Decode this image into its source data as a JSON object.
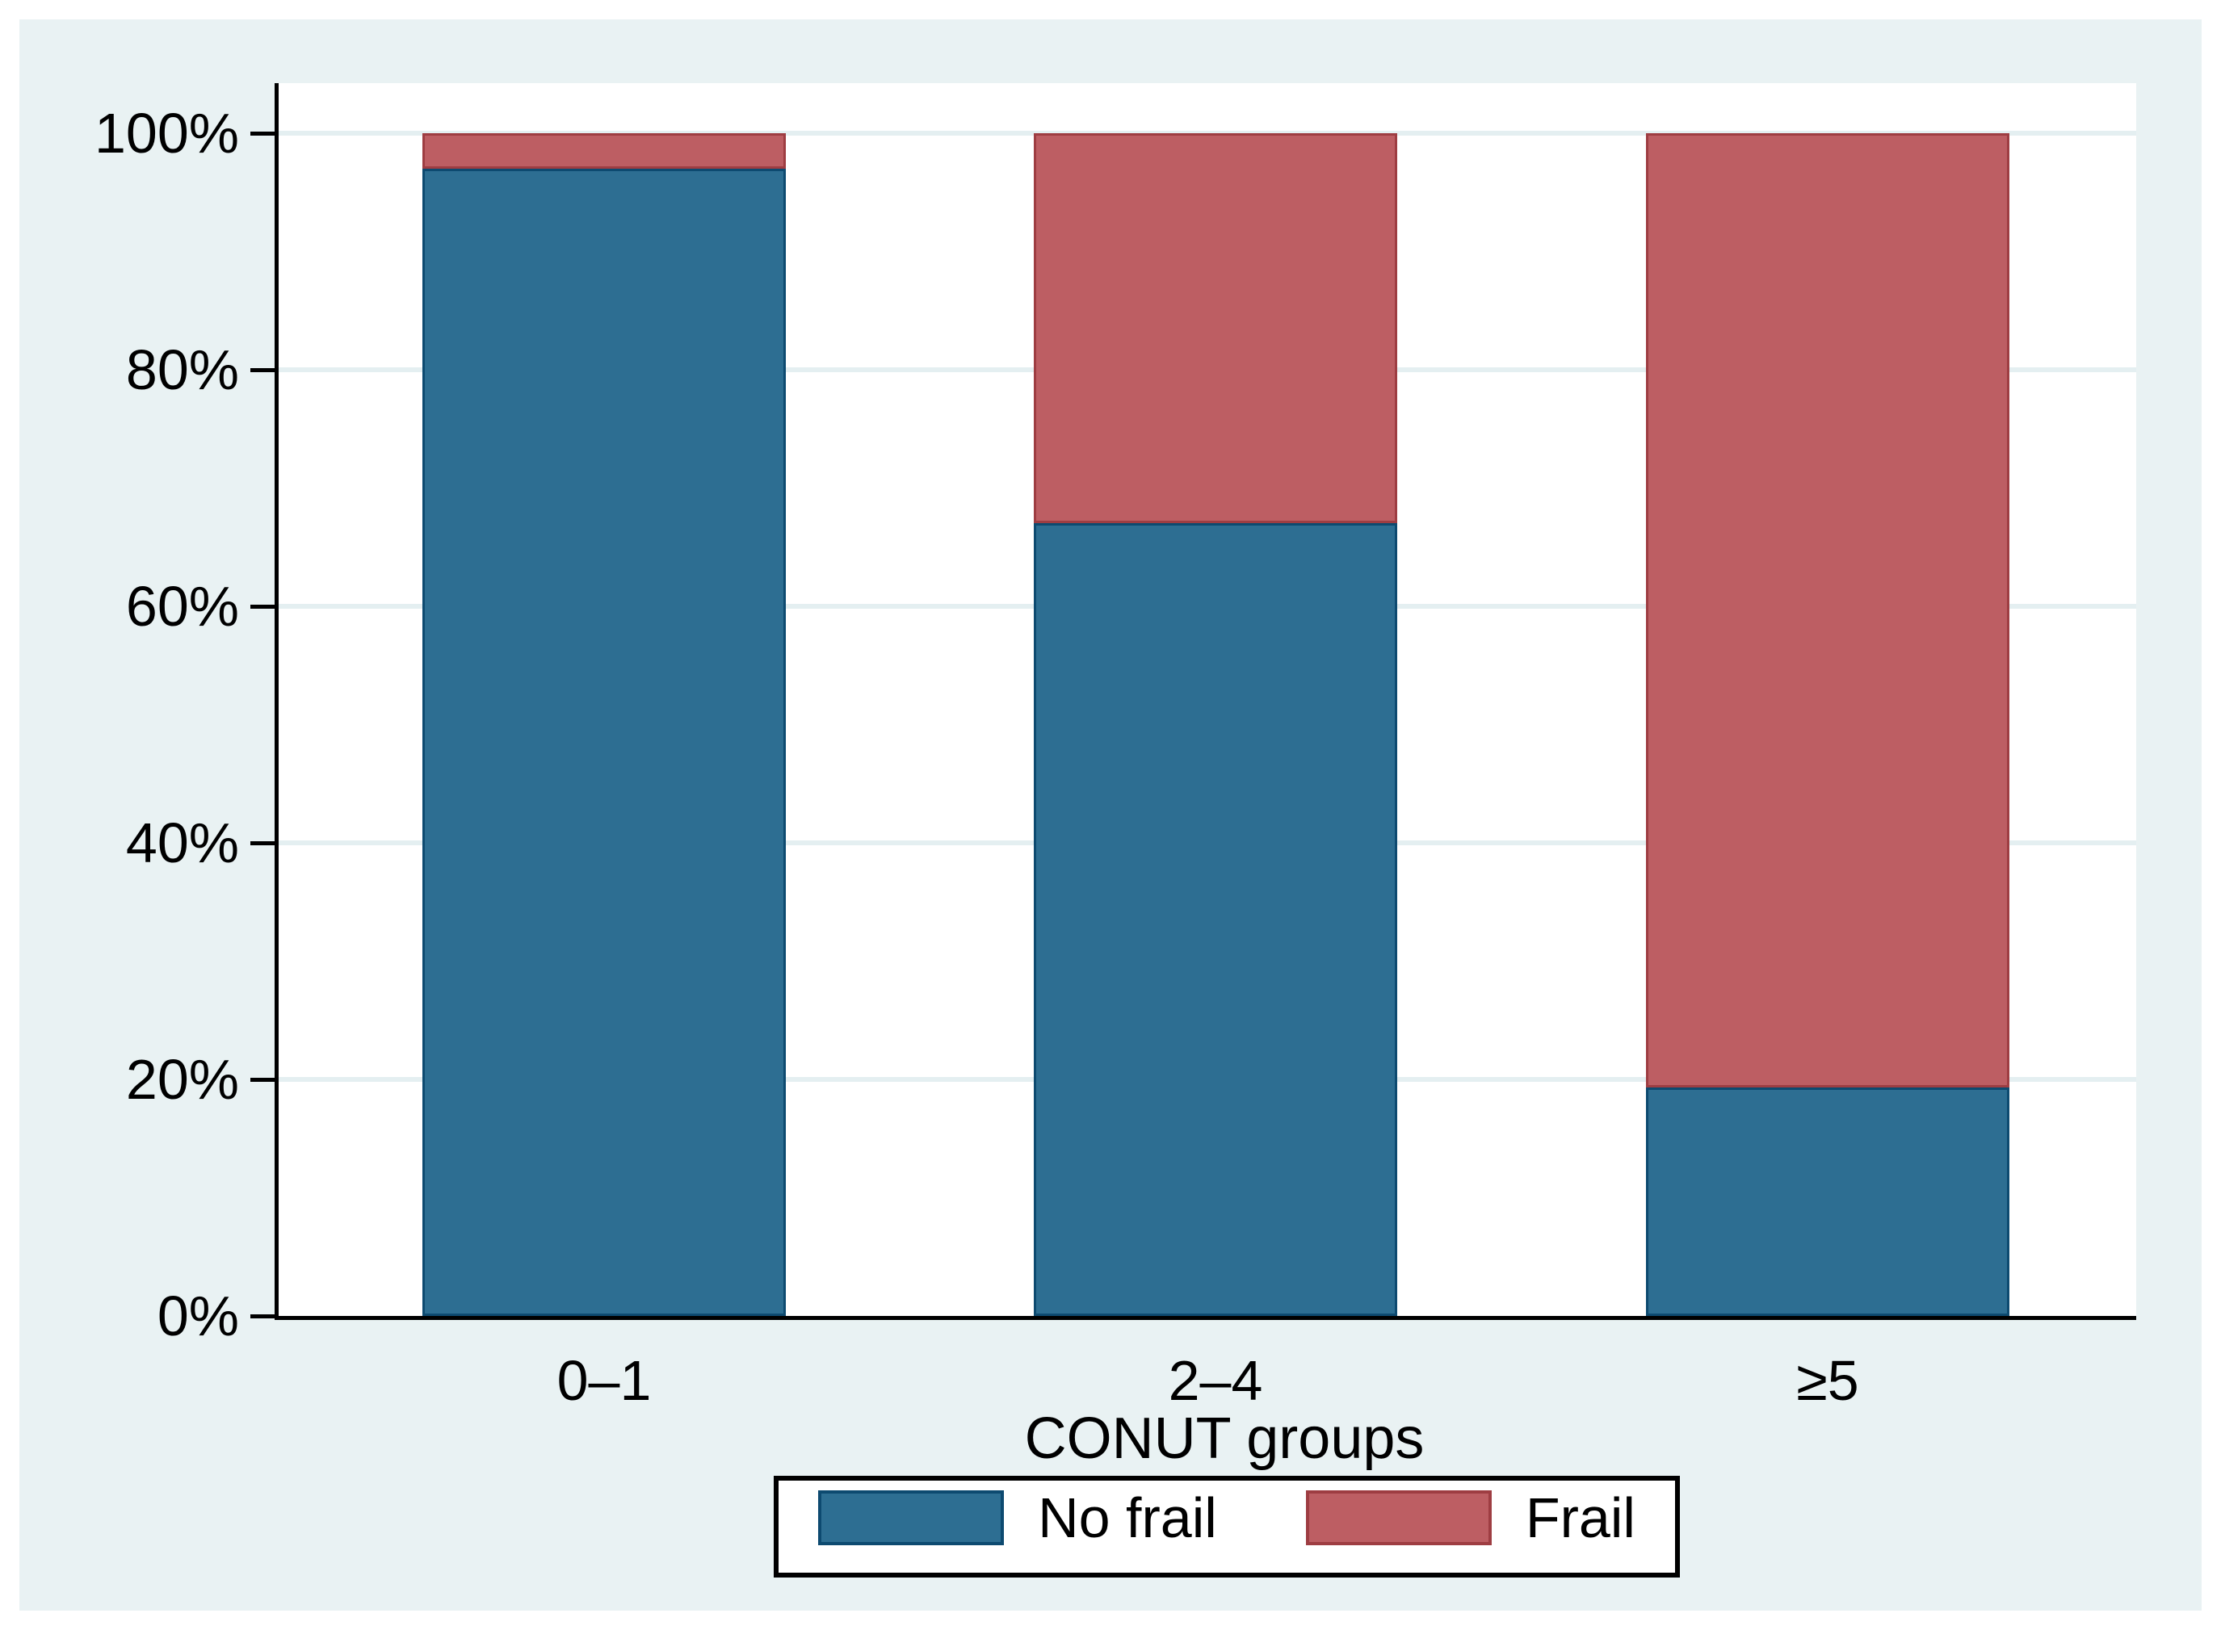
{
  "chart_data": {
    "type": "bar",
    "subtype": "stacked-100-percent",
    "title": "",
    "xlabel": "CONUT groups",
    "ylabel": "",
    "categories": [
      "0–1",
      "2–4",
      "≥5"
    ],
    "series": [
      {
        "name": "No frail",
        "values": [
          97,
          67,
          19.3
        ],
        "fill": "#2d6e92",
        "stroke": "#0d4a70"
      },
      {
        "name": "Frail",
        "values": [
          3,
          33,
          80.7
        ],
        "fill": "#bd5e63",
        "stroke": "#9e3d42"
      }
    ],
    "ylim": [
      0,
      100
    ],
    "y_ticks": [
      0,
      20,
      40,
      60,
      80,
      100
    ],
    "y_tick_labels": [
      "0%",
      "20%",
      "40%",
      "60%",
      "80%",
      "100%"
    ],
    "grid": "horizontal",
    "legend_position": "bottom",
    "colors": {
      "figure_background": "#e9f2f3",
      "plot_background": "#ffffff",
      "gridline": "#e4eff1",
      "axis": "#000000"
    }
  }
}
